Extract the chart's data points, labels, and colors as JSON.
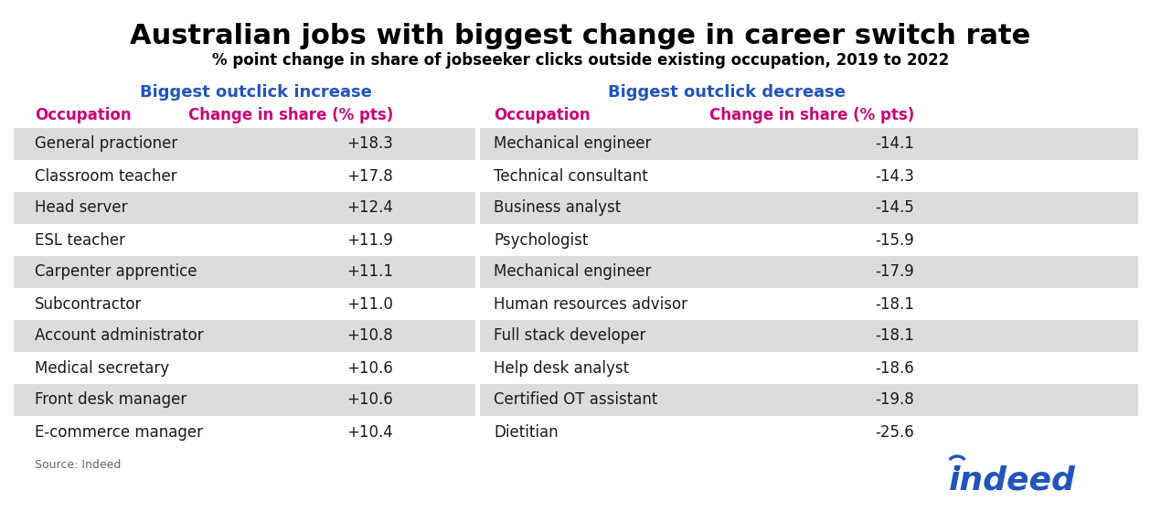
{
  "title": "Australian jobs with biggest change in career switch rate",
  "subtitle": "% point change in share of jobseeker clicks outside existing occupation, 2019 to 2022",
  "section_left": "Biggest outclick increase",
  "section_right": "Biggest outclick decrease",
  "col_headers": [
    "Occupation",
    "Change in share (% pts)",
    "Occupation",
    "Change in share (% pts)"
  ],
  "increase_data": [
    [
      "General practioner",
      "+18.3"
    ],
    [
      "Classroom teacher",
      "+17.8"
    ],
    [
      "Head server",
      "+12.4"
    ],
    [
      "ESL teacher",
      "+11.9"
    ],
    [
      "Carpenter apprentice",
      "+11.1"
    ],
    [
      "Subcontractor",
      "+11.0"
    ],
    [
      "Account administrator",
      "+10.8"
    ],
    [
      "Medical secretary",
      "+10.6"
    ],
    [
      "Front desk manager",
      "+10.6"
    ],
    [
      "E-commerce manager",
      "+10.4"
    ]
  ],
  "decrease_data": [
    [
      "Mechanical engineer",
      "-14.1"
    ],
    [
      "Technical consultant",
      "-14.3"
    ],
    [
      "Business analyst",
      "-14.5"
    ],
    [
      "Psychologist",
      "-15.9"
    ],
    [
      "Mechanical engineer",
      "-17.9"
    ],
    [
      "Human resources advisor",
      "-18.1"
    ],
    [
      "Full stack developer",
      "-18.1"
    ],
    [
      "Help desk analyst",
      "-18.6"
    ],
    [
      "Certified OT assistant",
      "-19.8"
    ],
    [
      "Dietitian",
      "-25.6"
    ]
  ],
  "source_text": "Source: Indeed",
  "title_color": "#000000",
  "subtitle_color": "#000000",
  "section_color": "#2255BB",
  "col_header_color": "#CC0077",
  "row_colors": [
    "#DCDCDC",
    "#FFFFFF"
  ],
  "background_color": "#FFFFFF",
  "indeed_blue": "#2255BB",
  "text_color": "#1a1a1a"
}
